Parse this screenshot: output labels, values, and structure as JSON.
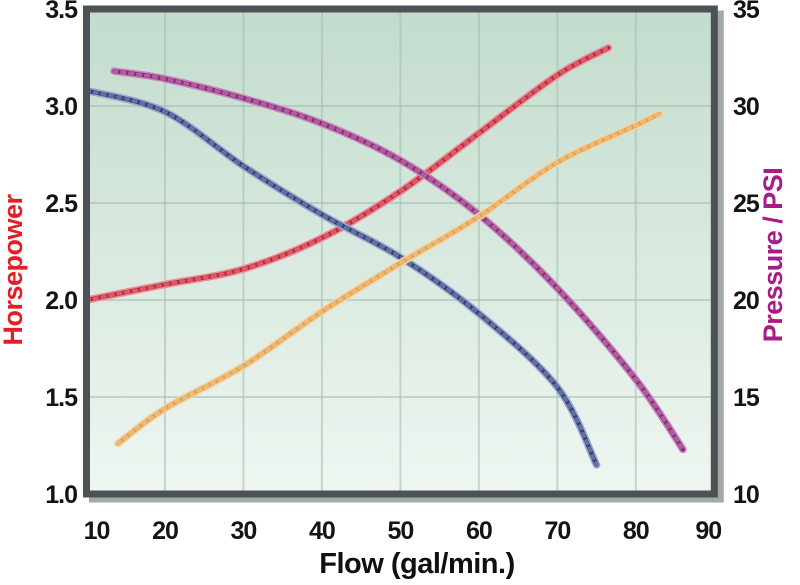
{
  "chart_data": {
    "type": "line",
    "title": "",
    "xlabel": "Flow (gal/min.)",
    "x_range": [
      10,
      90
    ],
    "x_ticks": [
      "10",
      "20",
      "30",
      "40",
      "50",
      "60",
      "70",
      "80",
      "90"
    ],
    "x_tick_values": [
      10,
      20,
      30,
      40,
      50,
      60,
      70,
      80,
      90
    ],
    "grid": true,
    "legend_position": "none",
    "left_axis": {
      "label": "Horsepower",
      "color": "#e41e26",
      "range": [
        1.0,
        3.5
      ],
      "ticks": [
        "3.5",
        "3.0",
        "2.5",
        "2.0",
        "1.5",
        "1.0"
      ],
      "tick_values": [
        3.5,
        3.0,
        2.5,
        2.0,
        1.5,
        1.0
      ]
    },
    "right_axis": {
      "label": "Pressure / PSI",
      "color": "#a81c87",
      "range": [
        10,
        35
      ],
      "ticks": [
        "35",
        "30",
        "25",
        "20",
        "15",
        "10"
      ],
      "tick_values": [
        35,
        30,
        25,
        20,
        15,
        10
      ]
    },
    "series": [
      {
        "name": "horsepower-curve-red",
        "axis": "left",
        "color": "#c32032",
        "halo": "#ee8c96",
        "points": [
          [
            10,
            2.0
          ],
          [
            20,
            2.08
          ],
          [
            30,
            2.16
          ],
          [
            40,
            2.32
          ],
          [
            50,
            2.56
          ],
          [
            60,
            2.86
          ],
          [
            70,
            3.16
          ],
          [
            76.5,
            3.3
          ]
        ]
      },
      {
        "name": "pressure-curve-blue",
        "axis": "right",
        "color": "#2c3b75",
        "halo": "#96a6d2",
        "points": [
          [
            10,
            30.8
          ],
          [
            20,
            29.7
          ],
          [
            30,
            26.9
          ],
          [
            40,
            24.4
          ],
          [
            50,
            22.2
          ],
          [
            60,
            19.3
          ],
          [
            70,
            15.5
          ],
          [
            75,
            11.5
          ]
        ]
      },
      {
        "name": "pressure-curve-magenta",
        "axis": "right",
        "color": "#8a2478",
        "halo": "#c983bb",
        "points": [
          [
            13.5,
            31.8
          ],
          [
            20,
            31.4
          ],
          [
            30,
            30.4
          ],
          [
            40,
            29.1
          ],
          [
            50,
            27.2
          ],
          [
            60,
            24.4
          ],
          [
            70,
            20.6
          ],
          [
            80,
            15.9
          ],
          [
            86,
            12.3
          ]
        ]
      },
      {
        "name": "pressure-curve-orange",
        "axis": "right",
        "color": "#e2a04a",
        "halo": "#f4d39e",
        "points": [
          [
            14,
            12.6
          ],
          [
            20,
            14.4
          ],
          [
            30,
            16.6
          ],
          [
            40,
            19.4
          ],
          [
            50,
            21.9
          ],
          [
            60,
            24.3
          ],
          [
            70,
            27.1
          ],
          [
            80,
            29.0
          ],
          [
            83,
            29.6
          ]
        ]
      }
    ],
    "plot_background_gradient_top": "#c2dccd",
    "plot_background_gradient_bottom": "#eff6f1",
    "gridline_color": "#a4bcab",
    "border_color": "#4e5156",
    "shadow_color": "#a2aaa6"
  }
}
